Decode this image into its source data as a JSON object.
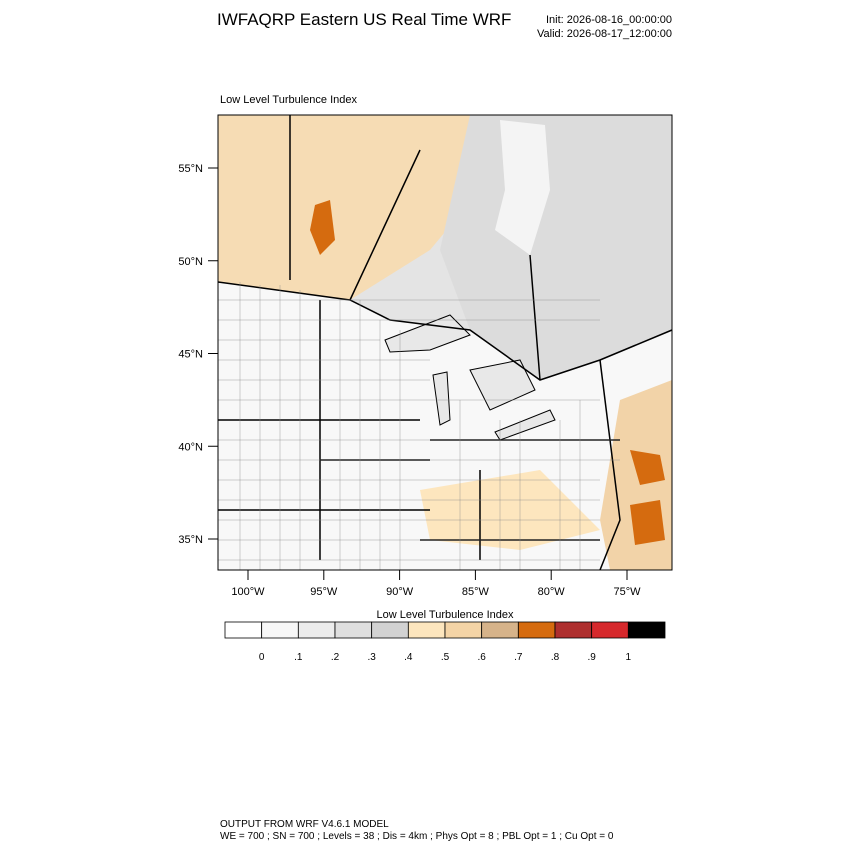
{
  "header": {
    "title": "IWFAQRP Eastern US Real Time WRF",
    "init": "Init: 2026-08-16_00:00:00",
    "valid": "Valid: 2026-08-17_12:00:00"
  },
  "map": {
    "label": "Low Level Turbulence Index",
    "lat_labels": [
      "55°N",
      "50°N",
      "45°N",
      "40°N",
      "35°N"
    ],
    "lon_labels": [
      "100°W",
      "95°W",
      "90°W",
      "85°W",
      "80°W",
      "75°W"
    ]
  },
  "colorbar": {
    "title": "Low Level Turbulence Index",
    "colors": [
      "#ffffff",
      "#f7f7f7",
      "#ececec",
      "#dfdfdf",
      "#d2d2d2",
      "#fde6be",
      "#f4d4a6",
      "#d6b38a",
      "#d56b0f",
      "#ae2f2e",
      "#d6282c",
      "#000000"
    ],
    "labels": [
      "0",
      ".1",
      ".2",
      ".3",
      ".4",
      ".5",
      ".6",
      ".7",
      ".8",
      ".9",
      "1"
    ]
  },
  "footer": {
    "line1": "OUTPUT FROM WRF V4.6.1 MODEL",
    "line2": "WE = 700 ; SN = 700 ; Levels = 38 ; Dis = 4km ; Phys Opt = 8 ; PBL Opt = 1 ; Cu Opt = 0"
  }
}
